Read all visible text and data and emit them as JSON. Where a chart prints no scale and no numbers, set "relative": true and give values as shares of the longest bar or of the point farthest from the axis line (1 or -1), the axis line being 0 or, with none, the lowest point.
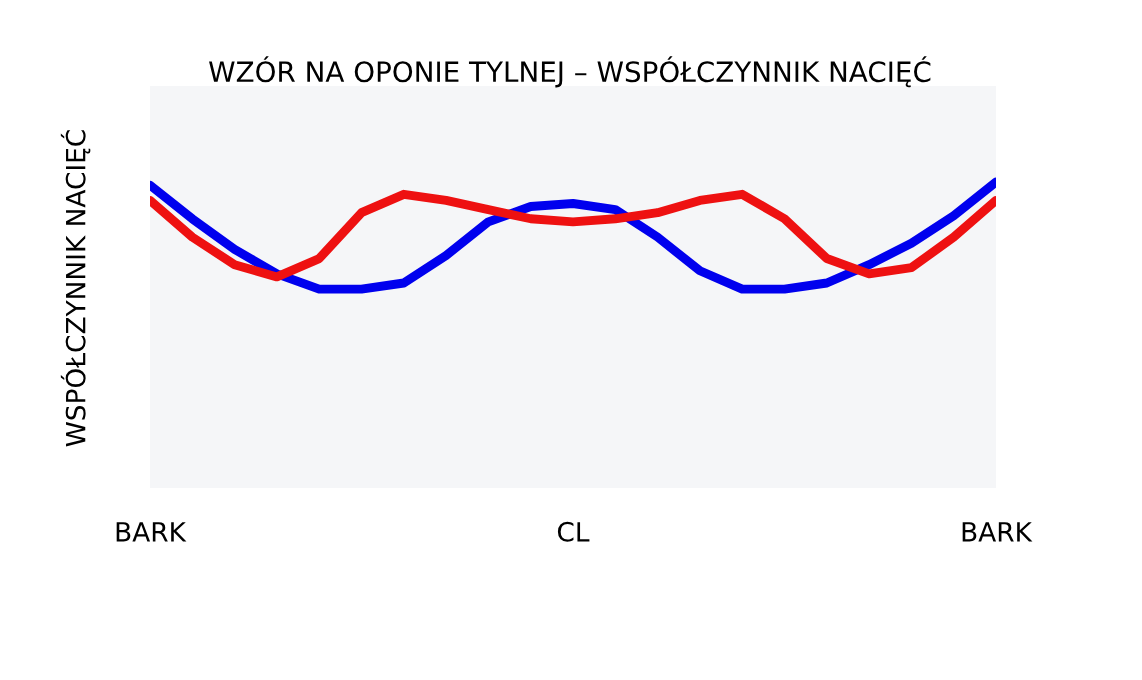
{
  "chart_data": {
    "type": "line",
    "title": "WZÓR NA OPONIE TYLNEJ – WSPÓŁCZYNNIK NACIĘĆ",
    "ylabel": "WSPÓŁCZYNNIK NACIĘĆ",
    "relative": true,
    "categories": [
      "BARK",
      null,
      null,
      null,
      null,
      null,
      null,
      null,
      null,
      null,
      "CL",
      null,
      null,
      null,
      null,
      null,
      null,
      null,
      null,
      null,
      "BARK"
    ],
    "grid": false,
    "marker": "none",
    "line_style": "solid",
    "series": [
      {
        "color": "#0000ee",
        "values": [
          0.99,
          0.88,
          0.78,
          0.7,
          0.65,
          0.65,
          0.67,
          0.76,
          0.87,
          0.92,
          0.93,
          0.91,
          0.82,
          0.71,
          0.65,
          0.65,
          0.67,
          0.73,
          0.8,
          0.89,
          1
        ]
      },
      {
        "color": "#ee1111",
        "values": [
          0.94,
          0.82,
          0.73,
          0.69,
          0.75,
          0.9,
          0.96,
          0.94,
          0.91,
          0.88,
          0.87,
          0.88,
          0.9,
          0.94,
          0.96,
          0.88,
          0.75,
          0.7,
          0.72,
          0.82,
          0.94
        ]
      }
    ]
  }
}
